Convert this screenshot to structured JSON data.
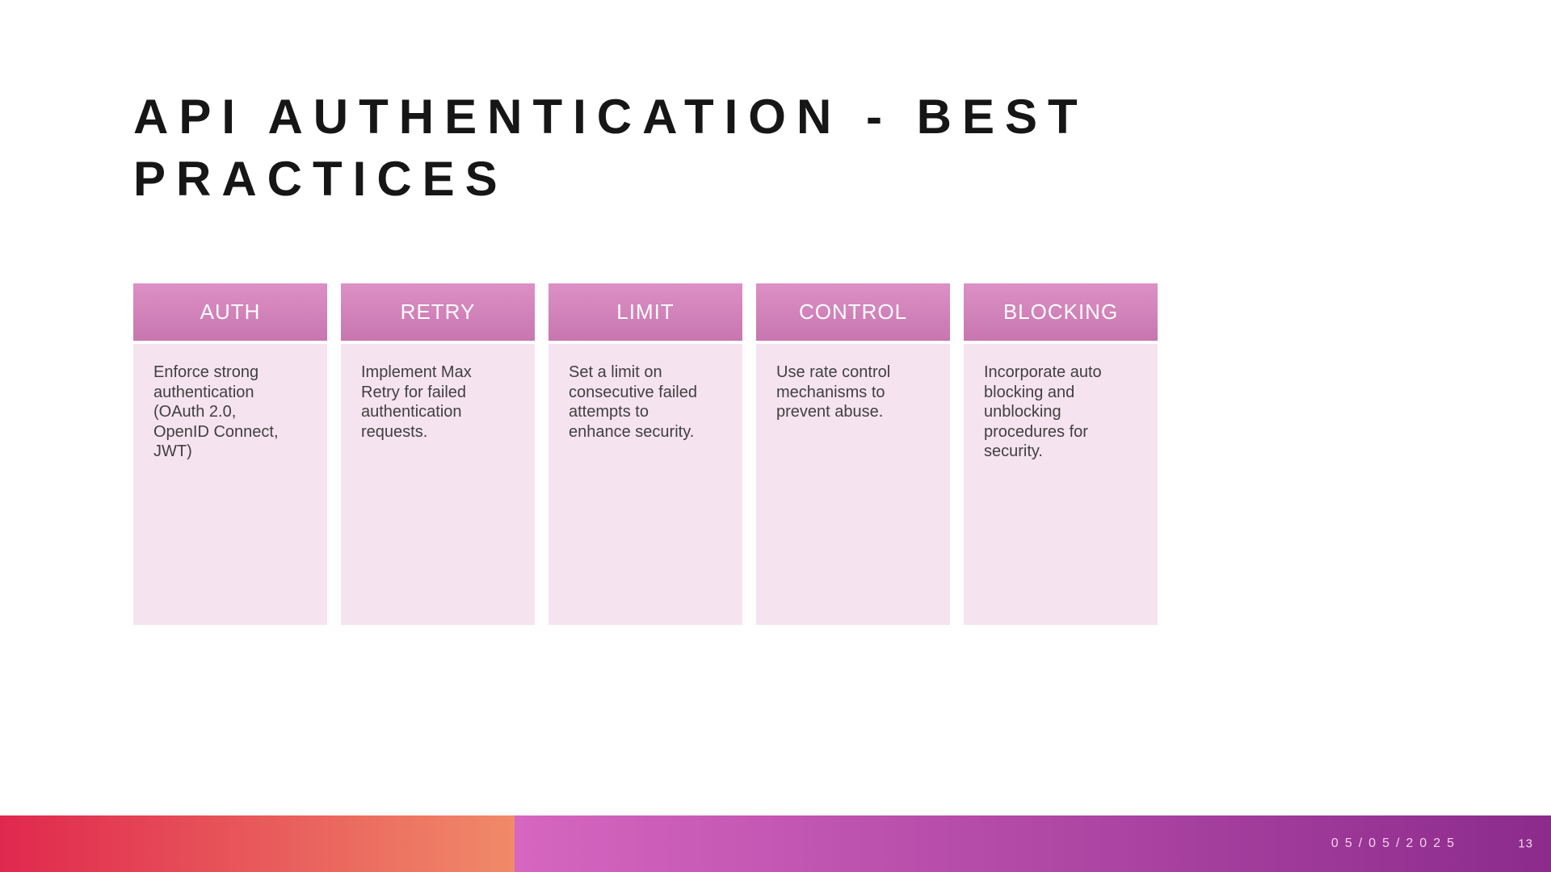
{
  "slide": {
    "title": "API AUTHENTICATION - BEST PRACTICES",
    "date": "05/05/2025",
    "page_number": "13",
    "columns": [
      {
        "header": "AUTH",
        "body": "Enforce strong\nauthentication\n(OAuth 2.0,\nOpenID Connect,\nJWT)"
      },
      {
        "header": "RETRY",
        "body": "Implement Max\nRetry for failed\nauthentication\nrequests."
      },
      {
        "header": "LIMIT",
        "body": "Set a limit on\nconsecutive failed\nattempts to\nenhance security."
      },
      {
        "header": "CONTROL",
        "body": "Use rate control\nmechanisms to\nprevent abuse."
      },
      {
        "header": "BLOCKING",
        "body": "Incorporate auto\nblocking and\nunblocking\nprocedures for\nsecurity."
      }
    ],
    "colors": {
      "title_text": "#161616",
      "card_header_gradient_top": "#dc90c6",
      "card_header_gradient_bottom": "#c876af",
      "card_header_text": "#ffffff",
      "card_body_bg": "#f6e3f0",
      "card_body_text": "#404040",
      "footer_left_gradient_start": "#e0284e",
      "footer_left_gradient_end": "#f08a68",
      "footer_right_gradient_start": "#d666c0",
      "footer_right_gradient_end": "#8c2b8c",
      "footer_text": "#f3d2e9"
    }
  }
}
